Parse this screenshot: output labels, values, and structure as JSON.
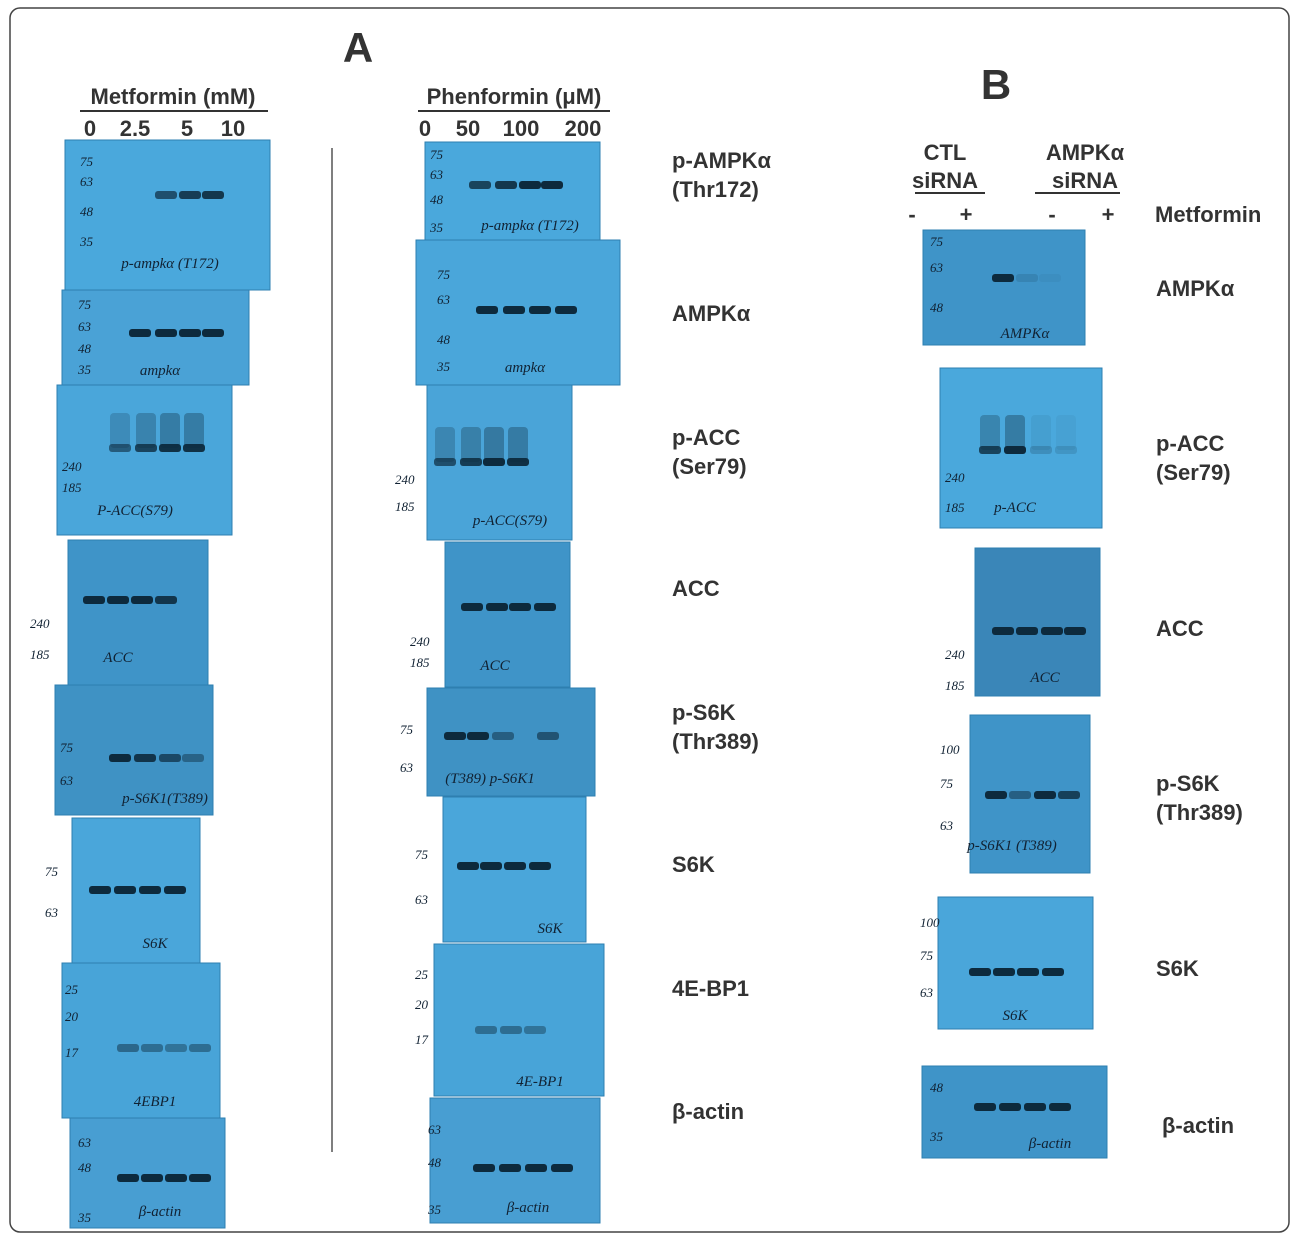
{
  "panel_a": {
    "label": "A",
    "metformin": {
      "title": "Metformin (mM)",
      "doses": [
        "0",
        "2.5",
        "5",
        "10"
      ],
      "blots": [
        {
          "markers": [
            "75",
            "63",
            "48",
            "35"
          ],
          "note": "p-ampkα (T172)"
        },
        {
          "markers": [
            "75",
            "63",
            "48",
            "35"
          ],
          "note": "ampkα"
        },
        {
          "markers": [
            "240",
            "185"
          ],
          "note": "P-ACC(S79)"
        },
        {
          "markers": [
            "240",
            "185"
          ],
          "note": "ACC"
        },
        {
          "markers": [
            "75",
            "63"
          ],
          "note": "p-S6K1(T389)"
        },
        {
          "markers": [
            "75",
            "63"
          ],
          "note": "S6K"
        },
        {
          "markers": [
            "25",
            "20",
            "17"
          ],
          "note": "4EBP1"
        },
        {
          "markers": [
            "63",
            "48",
            "35"
          ],
          "note": "β-actin"
        }
      ]
    },
    "phenformin": {
      "title": "Phenformin (μM)",
      "doses": [
        "0",
        "50",
        "100",
        "200"
      ],
      "blots": [
        {
          "markers": [
            "75",
            "63",
            "48",
            "35"
          ],
          "note": "p-ampkα (T172)"
        },
        {
          "markers": [
            "75",
            "63",
            "48",
            "35"
          ],
          "note": "ampkα"
        },
        {
          "markers": [
            "240",
            "185"
          ],
          "note": "p-ACC(S79)"
        },
        {
          "markers": [
            "240",
            "185"
          ],
          "note": "ACC"
        },
        {
          "markers": [
            "75",
            "63"
          ],
          "note": "(T389) p-S6K1"
        },
        {
          "markers": [
            "75",
            "63"
          ],
          "note": "S6K"
        },
        {
          "markers": [
            "25",
            "20",
            "17"
          ],
          "note": "4E-BP1"
        },
        {
          "markers": [
            "63",
            "48",
            "35"
          ],
          "note": "β-actin"
        }
      ]
    },
    "proteins": [
      [
        "p-AMPKα",
        "(Thr172)"
      ],
      [
        "AMPKα"
      ],
      [
        "p-ACC",
        "(Ser79)"
      ],
      [
        "ACC"
      ],
      [
        "p-S6K",
        "(Thr389)"
      ],
      [
        "S6K"
      ],
      [
        "4E-BP1"
      ],
      [
        "β-actin"
      ]
    ]
  },
  "panel_b": {
    "label": "B",
    "groups": [
      [
        "CTL",
        "siRNA"
      ],
      [
        "AMPKα",
        "siRNA"
      ]
    ],
    "signs": [
      "-",
      "+",
      "-",
      "+"
    ],
    "treatment": "Metformin",
    "blots": [
      {
        "markers": [
          "75",
          "63",
          "48"
        ],
        "note": "AMPKα"
      },
      {
        "markers": [
          "240",
          "185"
        ],
        "note": "p-ACC"
      },
      {
        "markers": [
          "240",
          "185"
        ],
        "note": "ACC"
      },
      {
        "markers": [
          "100",
          "75",
          "63"
        ],
        "note": "p-S6K1 (T389)"
      },
      {
        "markers": [
          "100",
          "75",
          "63"
        ],
        "note": "S6K"
      },
      {
        "markers": [
          "48",
          "35"
        ],
        "note": "β-actin"
      }
    ],
    "proteins": [
      [
        "AMPKα"
      ],
      [
        "p-ACC",
        "(Ser79)"
      ],
      [
        "ACC"
      ],
      [
        "p-S6K",
        "(Thr389)"
      ],
      [
        "S6K"
      ],
      [
        "β-actin"
      ]
    ]
  }
}
